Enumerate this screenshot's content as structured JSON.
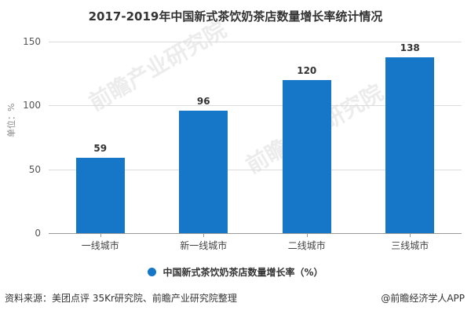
{
  "title": "2017-2019年中国新式茶饮奶茶店数量增长率统计情况",
  "y_axis": {
    "label": "单位：%",
    "ticks": [
      "0",
      "50",
      "100",
      "150"
    ]
  },
  "legend": {
    "label": "中国新式茶饮奶茶店数量增长率（%）"
  },
  "footer": {
    "source": "资料来源：美团点评 35Kr研究院、前瞻产业研究院整理",
    "credit": "@前瞻经济学人APP"
  },
  "watermark": {
    "text": "前瞻产业研究院"
  },
  "colors": {
    "bar": "#1677c8",
    "grid": "#dcdcdc",
    "axis": "#9a9a9a"
  },
  "chart_data": {
    "type": "bar",
    "title": "2017-2019年中国新式茶饮奶茶店数量增长率统计情况",
    "categories": [
      "一线城市",
      "新一线城市",
      "二线城市",
      "三线城市"
    ],
    "series": [
      {
        "name": "中国新式茶饮奶茶店数量增长率（%）",
        "values": [
          59,
          96,
          120,
          138
        ]
      }
    ],
    "value_labels": [
      "59",
      "96",
      "120",
      "138"
    ],
    "xlabel": "",
    "ylabel": "单位：%",
    "ylim": [
      0,
      150
    ],
    "yticks": [
      0,
      50,
      100,
      150
    ],
    "grid": true,
    "legend_position": "bottom"
  }
}
